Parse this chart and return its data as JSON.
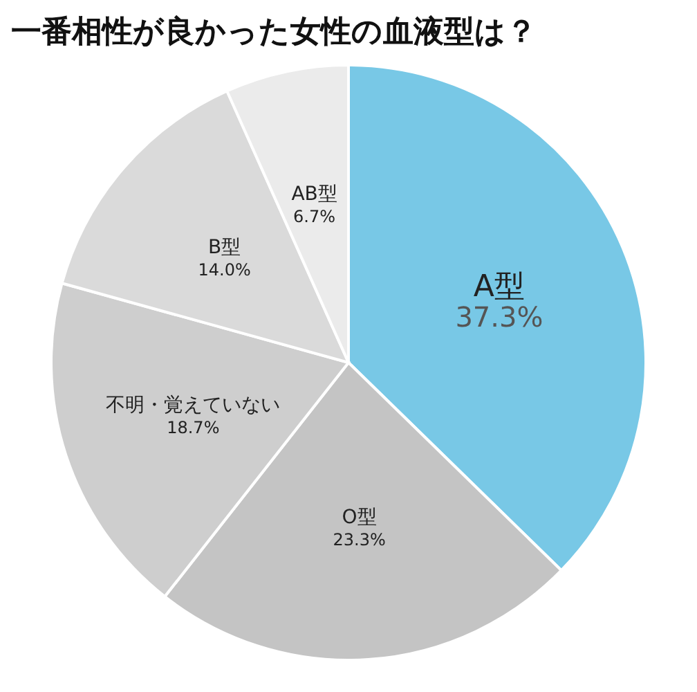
{
  "chart_data": {
    "type": "pie",
    "title": "一番相性が良かった女性の血液型は？",
    "categories": [
      "A型",
      "O型",
      "不明・覚えていない",
      "B型",
      "AB型"
    ],
    "values": [
      37.3,
      23.3,
      18.7,
      14.0,
      6.7
    ],
    "value_labels": [
      "37.3%",
      "23.3%",
      "18.7%",
      "14.0%",
      "6.7%"
    ],
    "colors": [
      "#78c8e6",
      "#c4c4c4",
      "#cecece",
      "#dadada",
      "#ebebeb"
    ]
  }
}
